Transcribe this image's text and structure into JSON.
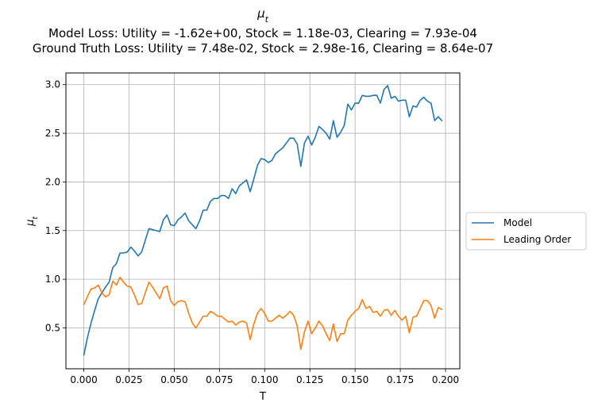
{
  "chart_data": {
    "type": "line",
    "title": "μ_t",
    "subtitle_lines": [
      "Model Loss: Utility = -1.62e+00, Stock = 1.18e-03, Clearing = 7.93e-04",
      "Ground Truth Loss: Utility = 7.48e-02, Stock = 2.98e-16, Clearing = 8.64e-07"
    ],
    "xlabel": "T",
    "ylabel": "μ_t",
    "xlim": [
      -0.0099,
      0.2079
    ],
    "ylim": [
      0.08,
      3.12
    ],
    "x_ticks": [
      0.0,
      0.025,
      0.05,
      0.075,
      0.1,
      0.125,
      0.15,
      0.175,
      0.2
    ],
    "x_tick_labels": [
      "0.000",
      "0.025",
      "0.050",
      "0.075",
      "0.100",
      "0.125",
      "0.150",
      "0.175",
      "0.200"
    ],
    "y_ticks": [
      0.5,
      1.0,
      1.5,
      2.0,
      2.5,
      3.0
    ],
    "y_tick_labels": [
      "0.5",
      "1.0",
      "1.5",
      "2.0",
      "2.5",
      "3.0"
    ],
    "grid": true,
    "legend_position": "outside-right",
    "x_step": 0.002,
    "series": [
      {
        "name": "Model",
        "color": "#1f77b4",
        "values": [
          0.22,
          0.4,
          0.55,
          0.68,
          0.8,
          0.86,
          0.92,
          0.97,
          1.12,
          1.16,
          1.27,
          1.27,
          1.28,
          1.33,
          1.29,
          1.24,
          1.28,
          1.4,
          1.52,
          1.51,
          1.5,
          1.49,
          1.61,
          1.66,
          1.56,
          1.55,
          1.61,
          1.64,
          1.68,
          1.6,
          1.56,
          1.52,
          1.6,
          1.71,
          1.71,
          1.8,
          1.83,
          1.83,
          1.86,
          1.86,
          1.83,
          1.93,
          1.88,
          1.96,
          1.99,
          2.02,
          1.9,
          2.03,
          2.17,
          2.24,
          2.23,
          2.2,
          2.22,
          2.29,
          2.32,
          2.35,
          2.4,
          2.45,
          2.45,
          2.39,
          2.16,
          2.4,
          2.47,
          2.38,
          2.46,
          2.57,
          2.54,
          2.5,
          2.44,
          2.63,
          2.46,
          2.51,
          2.58,
          2.8,
          2.74,
          2.81,
          2.81,
          2.89,
          2.88,
          2.88,
          2.89,
          2.89,
          2.81,
          2.95,
          2.99,
          2.86,
          2.88,
          2.83,
          2.84,
          2.84,
          2.67,
          2.78,
          2.77,
          2.84,
          2.87,
          2.83,
          2.81,
          2.63,
          2.67,
          2.63
        ]
      },
      {
        "name": "Leading Order",
        "color": "#ff7f0e",
        "values": [
          0.74,
          0.82,
          0.9,
          0.91,
          0.94,
          0.86,
          0.82,
          0.84,
          0.98,
          0.94,
          1.02,
          0.97,
          0.93,
          0.92,
          0.84,
          0.74,
          0.75,
          0.86,
          0.97,
          0.92,
          0.86,
          0.8,
          0.91,
          0.93,
          0.78,
          0.73,
          0.77,
          0.78,
          0.77,
          0.65,
          0.55,
          0.5,
          0.56,
          0.62,
          0.62,
          0.67,
          0.65,
          0.62,
          0.62,
          0.59,
          0.56,
          0.57,
          0.53,
          0.56,
          0.57,
          0.55,
          0.38,
          0.54,
          0.65,
          0.7,
          0.65,
          0.57,
          0.57,
          0.6,
          0.63,
          0.6,
          0.63,
          0.67,
          0.63,
          0.52,
          0.28,
          0.46,
          0.57,
          0.44,
          0.5,
          0.57,
          0.52,
          0.44,
          0.37,
          0.54,
          0.36,
          0.44,
          0.44,
          0.58,
          0.63,
          0.67,
          0.7,
          0.79,
          0.7,
          0.72,
          0.66,
          0.67,
          0.62,
          0.68,
          0.69,
          0.63,
          0.68,
          0.62,
          0.58,
          0.62,
          0.45,
          0.61,
          0.62,
          0.7,
          0.78,
          0.78,
          0.73,
          0.6,
          0.71,
          0.69
        ]
      }
    ]
  }
}
